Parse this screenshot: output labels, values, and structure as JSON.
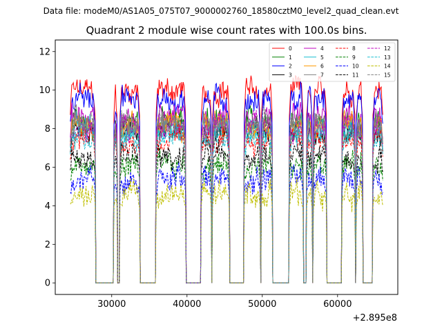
{
  "figure": {
    "suptitle": "Data file: modeM0/AS1A05_075T07_9000002760_18580cztM0_level2_quad_clean.evt"
  },
  "chart_data": {
    "type": "line",
    "title": "Quadrant 2 module wise count rates with 100.0s bins.",
    "xlabel": "",
    "ylabel": "",
    "x_offset_label": "+2.895e8",
    "x_offset": 289500000,
    "xlim": [
      22500,
      68000
    ],
    "ylim": [
      -0.6,
      12.6
    ],
    "xticks": [
      30000,
      40000,
      50000,
      60000
    ],
    "xtick_labels": [
      "30000",
      "40000",
      "50000",
      "60000"
    ],
    "yticks": [
      0,
      2,
      4,
      6,
      8,
      10,
      12
    ],
    "ytick_labels": [
      "0",
      "2",
      "4",
      "6",
      "8",
      "10",
      "12"
    ],
    "bin_size_s": 100,
    "x_range": [
      24500,
      66000
    ],
    "on_intervals": [
      [
        24500,
        27800
      ],
      [
        30300,
        30700
      ],
      [
        31100,
        33700
      ],
      [
        35900,
        39800
      ],
      [
        41900,
        43200
      ],
      [
        43400,
        45600
      ],
      [
        47600,
        49700
      ],
      [
        49900,
        51300
      ],
      [
        53600,
        55400
      ],
      [
        55900,
        56600
      ],
      [
        56800,
        58500
      ],
      [
        60600,
        62300
      ],
      [
        62500,
        63300
      ],
      [
        64700,
        66000
      ]
    ],
    "legend": {
      "location": "upper right",
      "columns": 4
    },
    "series": [
      {
        "name": "0",
        "color": "#ff0000",
        "dash": "solid",
        "level": 10.0
      },
      {
        "name": "1",
        "color": "#008000",
        "dash": "solid",
        "level": 8.4
      },
      {
        "name": "2",
        "color": "#0000ff",
        "dash": "solid",
        "level": 9.5
      },
      {
        "name": "3",
        "color": "#000000",
        "dash": "solid",
        "level": 7.8
      },
      {
        "name": "4",
        "color": "#bf00bf",
        "dash": "solid",
        "level": 8.6
      },
      {
        "name": "5",
        "color": "#17becf",
        "dash": "solid",
        "level": 8.0
      },
      {
        "name": "6",
        "color": "#ff9900",
        "dash": "solid",
        "level": 8.2
      },
      {
        "name": "7",
        "color": "#808080",
        "dash": "solid",
        "level": 8.3
      },
      {
        "name": "8",
        "color": "#ff0000",
        "dash": "dashed",
        "level": 7.4
      },
      {
        "name": "9",
        "color": "#008000",
        "dash": "dashed",
        "level": 6.1
      },
      {
        "name": "10",
        "color": "#0000ff",
        "dash": "dashed",
        "level": 5.4
      },
      {
        "name": "11",
        "color": "#000000",
        "dash": "dashed",
        "level": 6.6
      },
      {
        "name": "12",
        "color": "#bf00bf",
        "dash": "dashed",
        "level": 8.1
      },
      {
        "name": "13",
        "color": "#17becf",
        "dash": "dashed",
        "level": 7.6
      },
      {
        "name": "14",
        "color": "#bfbf00",
        "dash": "dashed",
        "level": 4.6
      },
      {
        "name": "15",
        "color": "#808080",
        "dash": "dashed",
        "level": 8.2
      }
    ]
  }
}
